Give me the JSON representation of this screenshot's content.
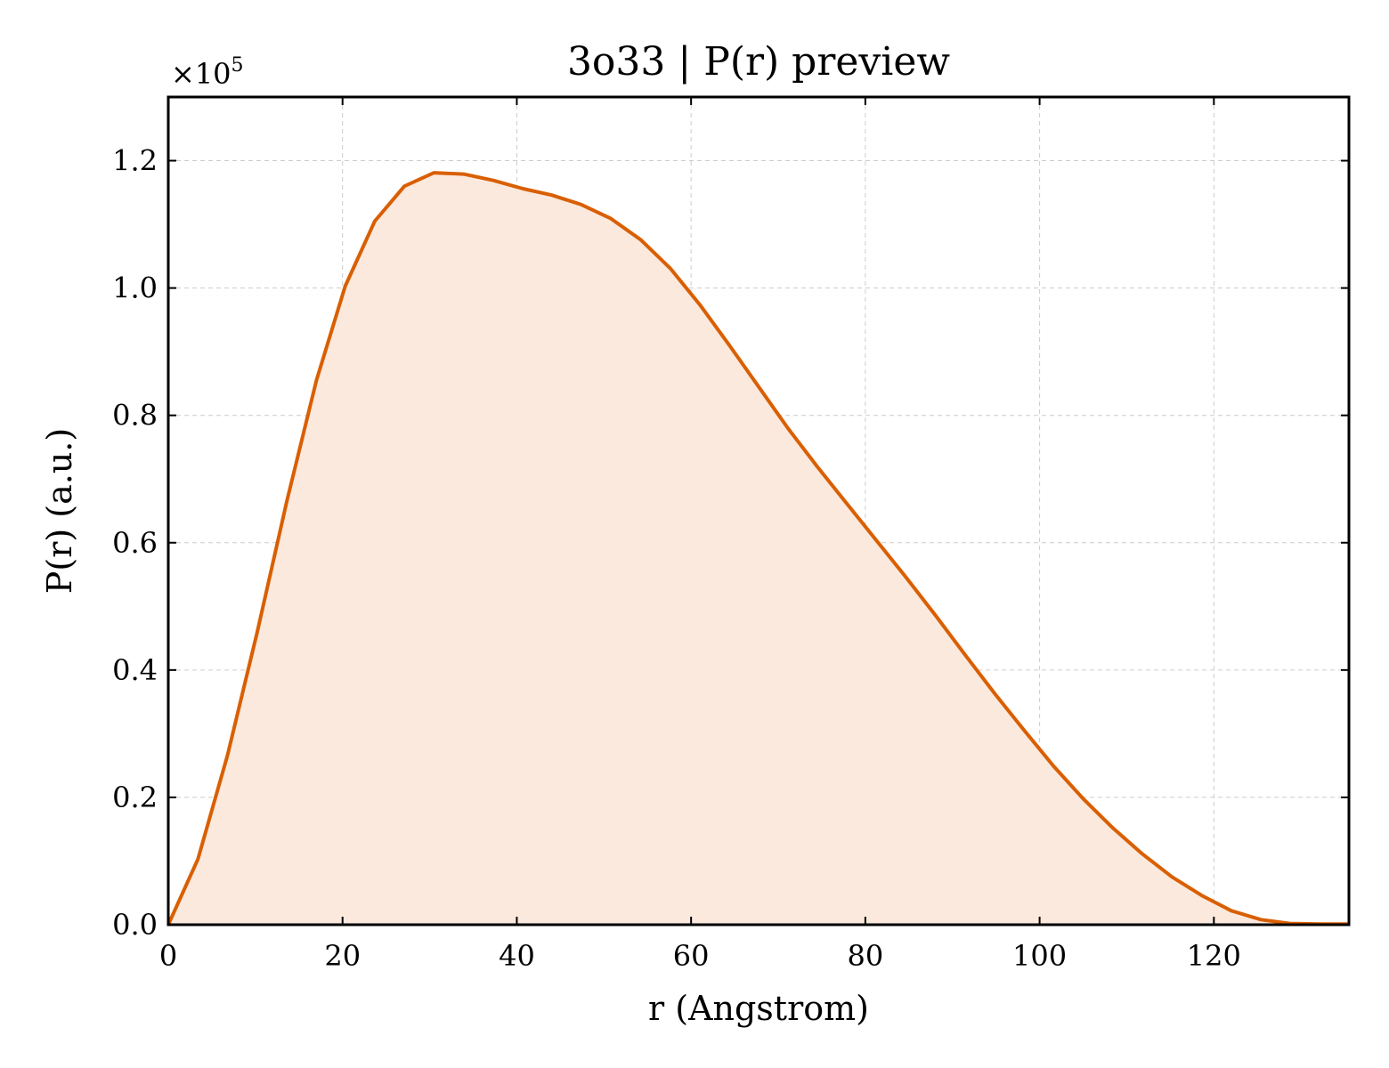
{
  "chart_data": {
    "type": "area",
    "title": "3o33 | P(r) preview",
    "xlabel": "r (Angstrom)",
    "ylabel": "P(r) (a.u.)",
    "y_offset_label": "×10",
    "y_offset_exponent": "5",
    "xlim": [
      0,
      135.5
    ],
    "ylim": [
      0,
      1.3
    ],
    "xticks": [
      0,
      20,
      40,
      60,
      80,
      100,
      120
    ],
    "xtick_labels": [
      "0",
      "20",
      "40",
      "60",
      "80",
      "100",
      "120"
    ],
    "yticks": [
      0.0,
      0.2,
      0.4,
      0.6,
      0.8,
      1.0,
      1.2
    ],
    "ytick_labels": [
      "0.0",
      "0.2",
      "0.4",
      "0.6",
      "0.8",
      "1.0",
      "1.2"
    ],
    "grid": true,
    "line_color": "#d95f02",
    "fill_color": "#fbe9de",
    "series": [
      {
        "x": [
          0,
          3.4,
          6.8,
          10.2,
          13.6,
          17.0,
          20.3,
          23.7,
          27.1,
          30.5,
          33.9,
          37.3,
          40.7,
          44.0,
          47.4,
          50.8,
          54.2,
          57.6,
          61.0,
          64.4,
          67.8,
          71.1,
          74.5,
          77.9,
          81.3,
          84.7,
          88.1,
          91.5,
          94.9,
          98.3,
          101.6,
          105.0,
          108.4,
          111.8,
          115.2,
          118.6,
          122.0,
          125.4,
          128.7,
          132.1,
          135.5
        ],
        "y": [
          0.0,
          0.103,
          0.266,
          0.459,
          0.665,
          0.855,
          1.003,
          1.105,
          1.16,
          1.181,
          1.179,
          1.169,
          1.156,
          1.146,
          1.131,
          1.109,
          1.076,
          1.031,
          0.974,
          0.91,
          0.844,
          0.78,
          0.719,
          0.661,
          0.603,
          0.545,
          0.485,
          0.423,
          0.362,
          0.304,
          0.249,
          0.198,
          0.152,
          0.111,
          0.075,
          0.046,
          0.022,
          0.008,
          0.002,
          0.001,
          0.001
        ]
      }
    ]
  }
}
